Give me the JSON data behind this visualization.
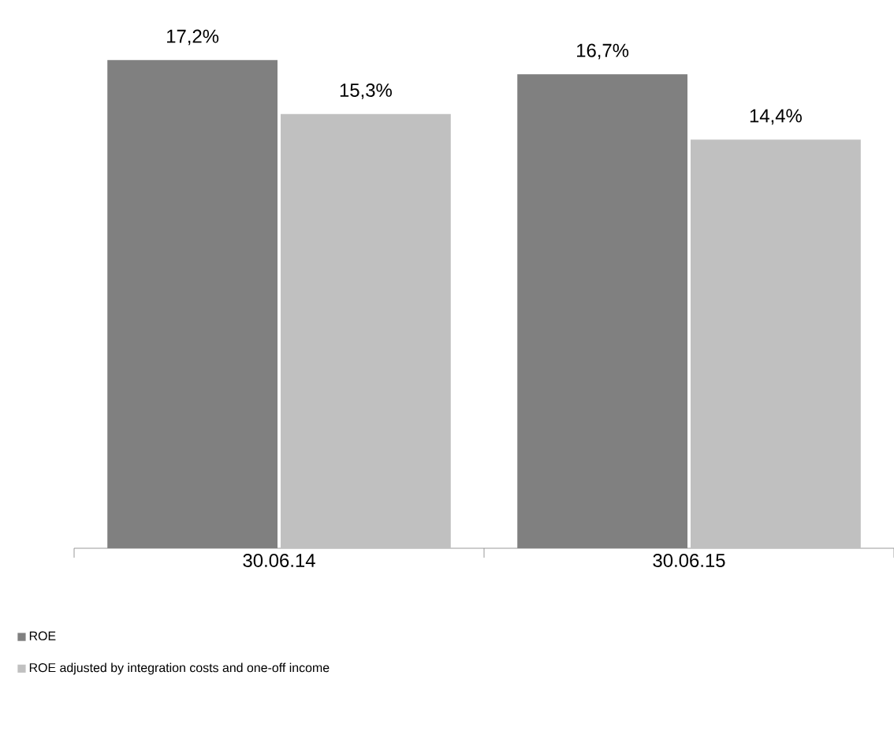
{
  "chart_data": {
    "type": "bar",
    "categories": [
      "30.06.14",
      "30.06.15"
    ],
    "series": [
      {
        "name": "ROE",
        "color": "#808080",
        "values": [
          17.2,
          16.7
        ],
        "value_labels": [
          "17,2%",
          "16,7%"
        ]
      },
      {
        "name": "ROE adjusted by integration costs and one-off income",
        "color": "#c0c0c0",
        "values": [
          15.3,
          14.4
        ],
        "value_labels": [
          "15,3%",
          "14,4%"
        ]
      }
    ],
    "legend": "bottom"
  }
}
